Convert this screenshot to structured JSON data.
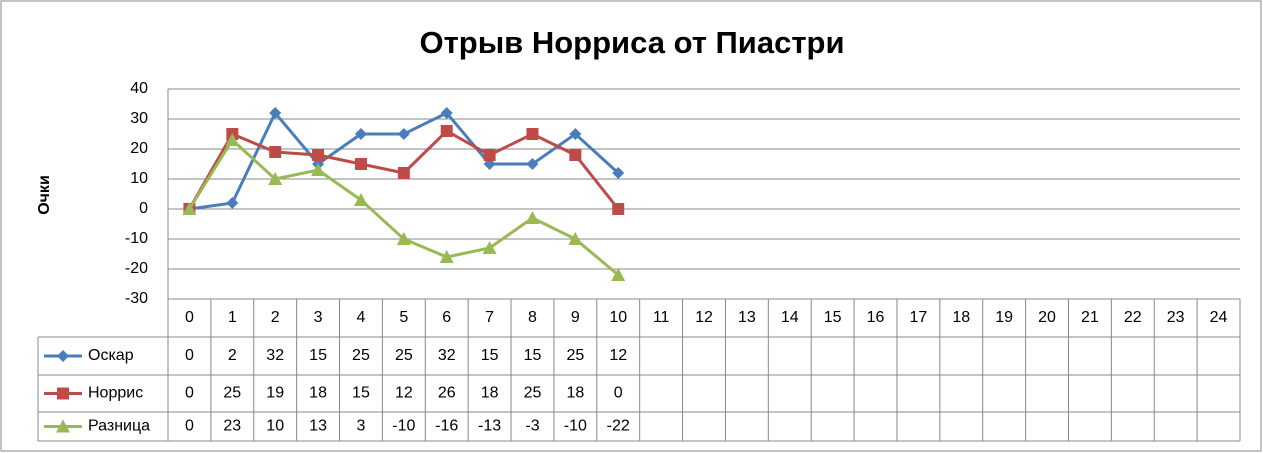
{
  "chart_data": {
    "type": "line",
    "title": "Отрыв Норриса от Пиастри",
    "y_label": "Очки",
    "categories": [
      "0",
      "1",
      "2",
      "3",
      "4",
      "5",
      "6",
      "7",
      "8",
      "9",
      "10",
      "11",
      "12",
      "13",
      "14",
      "15",
      "16",
      "17",
      "18",
      "19",
      "20",
      "21",
      "22",
      "23",
      "24"
    ],
    "series": [
      {
        "name": "Оскар",
        "color": "#4a7ebb",
        "marker": "diamond",
        "values": [
          0,
          2,
          32,
          15,
          25,
          25,
          32,
          15,
          15,
          25,
          12,
          null,
          null,
          null,
          null,
          null,
          null,
          null,
          null,
          null,
          null,
          null,
          null,
          null,
          null
        ]
      },
      {
        "name": "Норрис",
        "color": "#be4b48",
        "marker": "square",
        "values": [
          0,
          25,
          19,
          18,
          15,
          12,
          26,
          18,
          25,
          18,
          0,
          null,
          null,
          null,
          null,
          null,
          null,
          null,
          null,
          null,
          null,
          null,
          null,
          null,
          null
        ]
      },
      {
        "name": "Разница",
        "color": "#98b954",
        "marker": "triangle",
        "values": [
          0,
          23,
          10,
          13,
          3,
          -10,
          -16,
          -13,
          -3,
          -10,
          -22,
          null,
          null,
          null,
          null,
          null,
          null,
          null,
          null,
          null,
          null,
          null,
          null,
          null,
          null
        ]
      }
    ],
    "ylim": [
      -30,
      40
    ],
    "yticks": [
      -30,
      -20,
      -10,
      0,
      10,
      20,
      30,
      40
    ],
    "grid": true,
    "data_table": true
  }
}
